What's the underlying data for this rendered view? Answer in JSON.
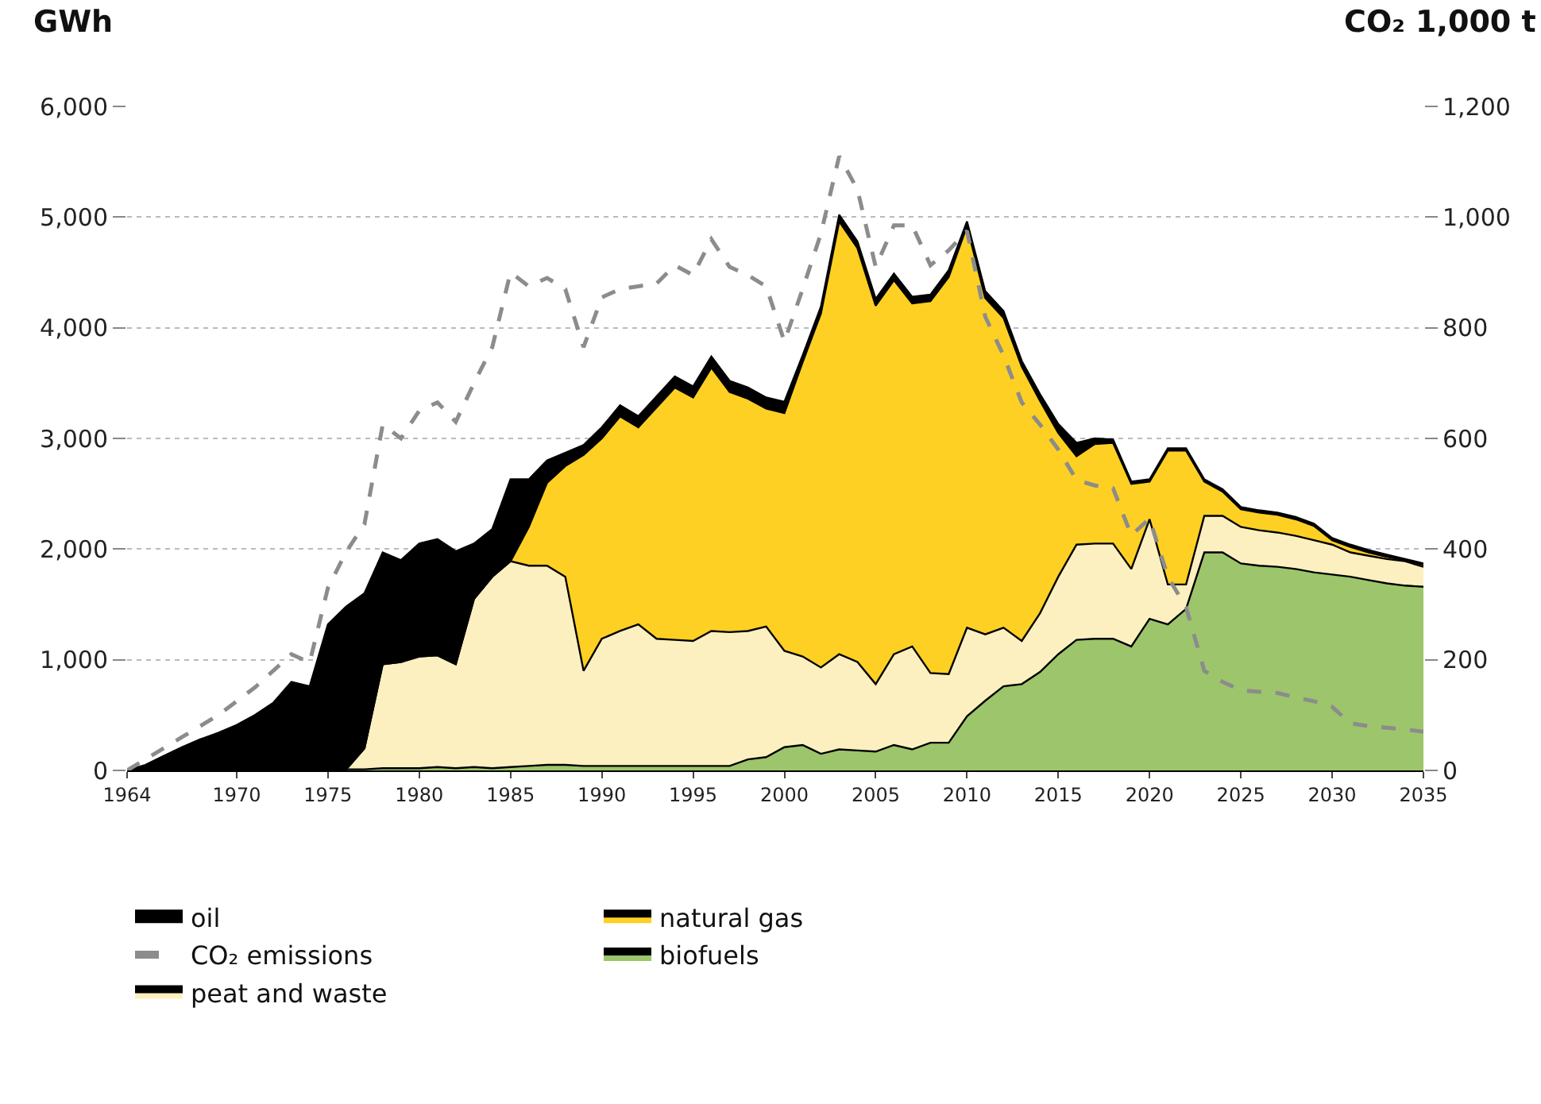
{
  "chart_data": {
    "type": "area",
    "stacked": true,
    "ylabel": "GWh",
    "y2label": "CO₂ 1,000 t",
    "x": [
      1964,
      1965,
      1966,
      1967,
      1968,
      1969,
      1970,
      1971,
      1972,
      1973,
      1974,
      1975,
      1976,
      1977,
      1978,
      1979,
      1980,
      1981,
      1982,
      1983,
      1984,
      1985,
      1986,
      1987,
      1988,
      1989,
      1990,
      1991,
      1992,
      1993,
      1994,
      1995,
      1996,
      1997,
      1998,
      1999,
      2000,
      2001,
      2002,
      2003,
      2004,
      2005,
      2006,
      2007,
      2008,
      2009,
      2010,
      2011,
      2012,
      2013,
      2014,
      2015,
      2016,
      2017,
      2018,
      2019,
      2020,
      2021,
      2022,
      2023,
      2024,
      2025,
      2026,
      2027,
      2028,
      2029,
      2030,
      2031,
      2032,
      2033,
      2034,
      2035
    ],
    "series": [
      {
        "name": "biofuels",
        "color": "#9dc56b",
        "values": [
          0,
          0,
          0,
          0,
          0,
          0,
          0,
          0,
          0,
          0,
          0,
          0,
          10,
          10,
          20,
          20,
          20,
          30,
          20,
          30,
          20,
          30,
          40,
          50,
          50,
          40,
          40,
          40,
          40,
          40,
          40,
          40,
          40,
          40,
          100,
          120,
          210,
          230,
          150,
          190,
          180,
          170,
          230,
          190,
          250,
          250,
          490,
          630,
          760,
          780,
          890,
          1050,
          1180,
          1190,
          1190,
          1120,
          1370,
          1320,
          1460,
          1970,
          1970,
          1870,
          1850,
          1840,
          1820,
          1790,
          1770,
          1750,
          1720,
          1690,
          1670,
          1660
        ]
      },
      {
        "name": "peat and waste",
        "color": "#fdf0c0",
        "values": [
          0,
          0,
          0,
          0,
          0,
          0,
          0,
          0,
          0,
          0,
          0,
          0,
          0,
          190,
          940,
          960,
          1010,
          1010,
          940,
          1520,
          1730,
          1860,
          1810,
          1800,
          1700,
          860,
          1150,
          1220,
          1280,
          1150,
          1140,
          1130,
          1220,
          1210,
          1160,
          1180,
          870,
          800,
          780,
          860,
          800,
          610,
          820,
          930,
          630,
          620,
          800,
          600,
          530,
          390,
          530,
          700,
          860,
          860,
          860,
          700,
          900,
          360,
          220,
          330,
          330,
          330,
          320,
          310,
          300,
          290,
          270,
          220,
          220,
          220,
          220,
          180
        ]
      },
      {
        "name": "natural gas",
        "color": "#fdd023",
        "values": [
          0,
          0,
          0,
          0,
          0,
          0,
          0,
          0,
          0,
          0,
          0,
          0,
          0,
          0,
          0,
          0,
          0,
          0,
          0,
          0,
          0,
          0,
          350,
          750,
          1000,
          1950,
          1810,
          1940,
          1780,
          2090,
          2280,
          2200,
          2380,
          2170,
          2100,
          1970,
          2150,
          2660,
          3200,
          3910,
          3740,
          3420,
          3380,
          3100,
          3360,
          3590,
          3630,
          3040,
          2800,
          2480,
          1920,
          1300,
          800,
          900,
          910,
          770,
          340,
          1210,
          1210,
          310,
          220,
          160,
          160,
          160,
          150,
          130,
          40,
          50,
          30,
          20,
          10,
          20
        ]
      },
      {
        "name": "oil",
        "color": "#000000",
        "values": [
          0,
          50,
          130,
          210,
          280,
          340,
          410,
          500,
          610,
          800,
          760,
          1320,
          1470,
          1400,
          1010,
          920,
          1020,
          1050,
          1020,
          500,
          430,
          740,
          430,
          200,
          120,
          90,
          100,
          100,
          100,
          100,
          100,
          100,
          100,
          100,
          100,
          100,
          100,
          60,
          60,
          60,
          60,
          60,
          60,
          60,
          60,
          60,
          40,
          60,
          60,
          50,
          60,
          80,
          120,
          50,
          30,
          20,
          20,
          20,
          20,
          20,
          20,
          20,
          20,
          20,
          20,
          20,
          20,
          20,
          20,
          20,
          10,
          10
        ]
      },
      {
        "name": "CO₂ emissions",
        "type": "line",
        "axis": "y2",
        "line_style": "dashed",
        "color": "#8c8c8c",
        "values": [
          0,
          20,
          40,
          60,
          80,
          100,
          125,
          150,
          180,
          210,
          195,
          330,
          395,
          445,
          625,
          600,
          650,
          665,
          630,
          700,
          765,
          900,
          875,
          890,
          870,
          765,
          855,
          870,
          875,
          880,
          913,
          895,
          960,
          910,
          895,
          875,
          775,
          870,
          970,
          1110,
          1050,
          910,
          985,
          985,
          913,
          940,
          975,
          820,
          750,
          665,
          625,
          580,
          525,
          515,
          510,
          425,
          455,
          350,
          295,
          180,
          160,
          145,
          142,
          140,
          132,
          125,
          115,
          85,
          80,
          77,
          74,
          70
        ]
      }
    ],
    "xlim": [
      1964,
      2035
    ],
    "xticks": [
      1964,
      1970,
      1975,
      1980,
      1985,
      1990,
      1995,
      2000,
      2005,
      2010,
      2015,
      2020,
      2025,
      2030,
      2035
    ],
    "ylim": [
      0,
      6000
    ],
    "yticks": [
      {
        "value": 0,
        "label": "0"
      },
      {
        "value": 1000,
        "label": "1,000"
      },
      {
        "value": 2000,
        "label": "2,000"
      },
      {
        "value": 3000,
        "label": "3,000"
      },
      {
        "value": 4000,
        "label": "4,000"
      },
      {
        "value": 5000,
        "label": "5,000"
      },
      {
        "value": 6000,
        "label": "6,000"
      }
    ],
    "y2lim": [
      0,
      1200
    ],
    "y2ticks": [
      0,
      200,
      400,
      600,
      800,
      {
        "value": 1000,
        "label": "1,000"
      },
      {
        "value": 1200,
        "label": "1,200"
      }
    ],
    "grid": "y",
    "legend": "bottom"
  }
}
